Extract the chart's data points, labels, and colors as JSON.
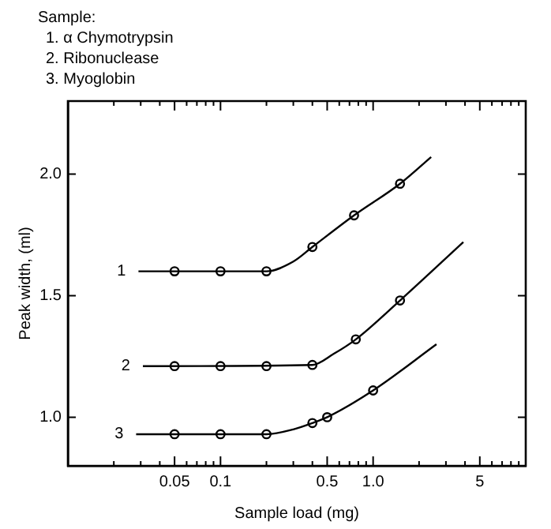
{
  "chart_data": {
    "type": "line",
    "xlabel": "Sample load (mg)",
    "ylabel": "Peak width, (ml)",
    "annotations": [
      "Sample:",
      "1. α Chymotrypsin",
      "2. Ribonuclease",
      "3. Myoglobin"
    ],
    "log": "x",
    "grid": false,
    "legend": false,
    "xlim": [
      0.01,
      10
    ],
    "ylim": [
      0.8,
      2.3
    ],
    "xticks": [
      {
        "value": 0.02,
        "label": null
      },
      {
        "value": 0.03,
        "label": null
      },
      {
        "value": 0.04,
        "label": null
      },
      0.05,
      {
        "value": 0.06,
        "label": null
      },
      {
        "value": 0.07,
        "label": null
      },
      {
        "value": 0.08,
        "label": null
      },
      {
        "value": 0.09,
        "label": null
      },
      0.1,
      {
        "value": 0.2,
        "label": null
      },
      {
        "value": 0.3,
        "label": null
      },
      {
        "value": 0.4,
        "label": null
      },
      0.5,
      {
        "value": 0.6,
        "label": null
      },
      {
        "value": 0.7,
        "label": null
      },
      {
        "value": 0.8,
        "label": null
      },
      {
        "value": 0.9,
        "label": null
      },
      {
        "value": 1,
        "label": "1.0"
      },
      {
        "value": 2,
        "label": null
      },
      {
        "value": 3,
        "label": null
      },
      {
        "value": 4,
        "label": null
      },
      5,
      {
        "value": 6,
        "label": null
      },
      {
        "value": 7,
        "label": null
      },
      {
        "value": 8,
        "label": null
      },
      {
        "value": 9,
        "label": null
      }
    ],
    "yticks": [
      {
        "value": 1,
        "label": "1.0"
      },
      1.5,
      {
        "value": 2,
        "label": "2.0"
      }
    ],
    "series": [
      {
        "name": "1",
        "marker": "none",
        "color": "#000000",
        "x": [
          0.029,
          0.2,
          0.3,
          0.4,
          0.75,
          1.5,
          2.4
        ],
        "values": [
          1.6,
          1.6,
          1.64,
          1.7,
          1.83,
          1.96,
          2.07
        ]
      },
      {
        "name": "2",
        "marker": "none",
        "color": "#000000",
        "x": [
          0.031,
          0.4,
          0.55,
          0.77,
          1.5,
          3.9
        ],
        "values": [
          1.21,
          1.215,
          1.26,
          1.32,
          1.48,
          1.72
        ]
      },
      {
        "name": "3",
        "marker": "none",
        "color": "#000000",
        "x": [
          0.028,
          0.2,
          0.3,
          0.4,
          0.5,
          1,
          2.6
        ],
        "values": [
          0.93,
          0.93,
          0.95,
          0.976,
          1.0,
          1.11,
          1.3
        ]
      },
      {
        "type": "scatter",
        "marker": "circle",
        "color": "#000000",
        "x": [
          0.05,
          0.1,
          0.2,
          0.4,
          0.75,
          1.5
        ],
        "values": [
          1.6,
          1.6,
          1.6,
          1.7,
          1.83,
          1.96
        ]
      },
      {
        "type": "scatter",
        "marker": "circle",
        "color": "#000000",
        "x": [
          0.05,
          0.1,
          0.2,
          0.4,
          0.77,
          1.5
        ],
        "values": [
          1.21,
          1.21,
          1.21,
          1.215,
          1.32,
          1.48
        ]
      },
      {
        "type": "scatter",
        "marker": "circle",
        "color": "#000000",
        "x": [
          0.05,
          0.1,
          0.2,
          0.4,
          0.5,
          1
        ],
        "values": [
          0.93,
          0.93,
          0.93,
          0.976,
          1.0,
          1.11
        ]
      }
    ]
  }
}
